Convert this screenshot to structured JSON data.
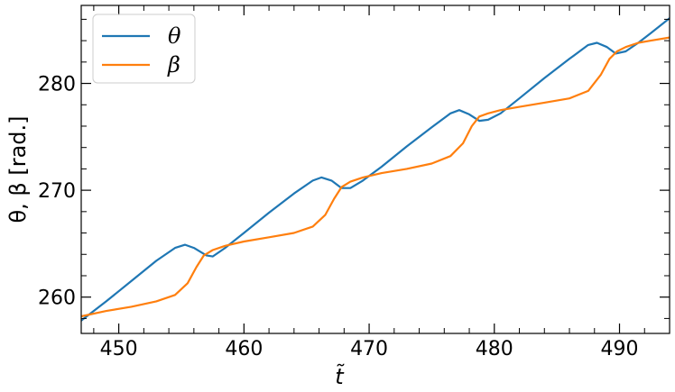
{
  "chart_data": {
    "type": "line",
    "title": "",
    "xlabel": "t̃",
    "ylabel": "θ,  β [rad.]",
    "xlim": [
      447,
      494
    ],
    "ylim": [
      256.6,
      287.3
    ],
    "xticks": [
      450,
      460,
      470,
      480,
      490
    ],
    "yticks": [
      260,
      270,
      280
    ],
    "grid": false,
    "legend_position": "top-left",
    "series": [
      {
        "name": "θ",
        "color": "#1f77b4",
        "x": [
          447,
          449,
          451,
          453,
          454.5,
          455.3,
          456,
          457,
          457.5,
          458.5,
          460,
          462,
          464,
          465.5,
          466.2,
          467,
          467.8,
          468.5,
          469.5,
          471,
          473,
          475,
          476.5,
          477.2,
          478,
          478.8,
          479.5,
          480.5,
          482,
          484,
          486,
          487.5,
          488.2,
          489,
          489.7,
          490.5,
          491.5,
          492.5,
          494
        ],
        "y": [
          257.8,
          259.6,
          261.5,
          263.4,
          264.6,
          264.9,
          264.6,
          263.9,
          263.8,
          264.6,
          266.0,
          267.9,
          269.7,
          270.9,
          271.2,
          270.9,
          270.2,
          270.2,
          270.9,
          272.2,
          274.1,
          275.9,
          277.2,
          277.5,
          277.1,
          276.5,
          276.6,
          277.2,
          278.6,
          280.5,
          282.3,
          283.6,
          283.8,
          283.4,
          282.8,
          283.0,
          283.8,
          284.7,
          286.1
        ]
      },
      {
        "name": "β",
        "color": "#ff7f0e",
        "x": [
          447,
          449,
          451,
          453,
          454.5,
          455.5,
          456.2,
          456.8,
          457.5,
          458.5,
          460,
          462,
          464,
          465.5,
          466.5,
          467.2,
          467.8,
          468.5,
          469.5,
          471,
          473,
          475,
          476.5,
          477.5,
          478.2,
          478.8,
          479.5,
          480.5,
          482,
          484,
          486,
          487.5,
          488.5,
          489.2,
          489.8,
          490.5,
          491.5,
          492.5,
          494
        ],
        "y": [
          258.2,
          258.7,
          259.1,
          259.6,
          260.2,
          261.3,
          262.8,
          263.9,
          264.4,
          264.8,
          265.2,
          265.6,
          266.0,
          266.6,
          267.7,
          269.2,
          270.3,
          270.8,
          271.2,
          271.6,
          272.0,
          272.5,
          273.2,
          274.4,
          276.0,
          276.9,
          277.2,
          277.5,
          277.8,
          278.2,
          278.6,
          279.3,
          280.8,
          282.3,
          283.0,
          283.4,
          283.8,
          284.0,
          284.3
        ]
      }
    ]
  }
}
